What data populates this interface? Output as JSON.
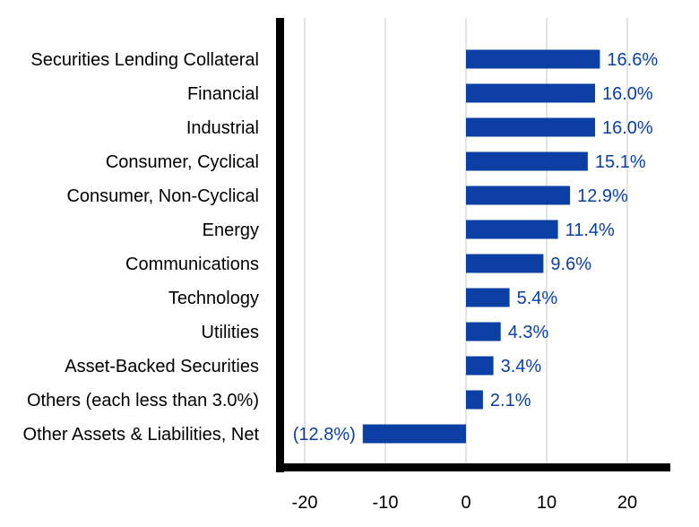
{
  "chart_data": {
    "type": "bar",
    "orientation": "horizontal",
    "title": "",
    "xlabel": "",
    "ylabel": "",
    "xlim": [
      -25,
      25
    ],
    "xticks": [
      -20,
      -10,
      0,
      10,
      20
    ],
    "xtick_labels": [
      "-20",
      "-10",
      "0",
      "10",
      "20"
    ],
    "grid": true,
    "legend": "none",
    "categories": [
      "Securities Lending Collateral",
      "Financial",
      "Industrial",
      "Consumer, Cyclical",
      "Consumer, Non-Cyclical",
      "Energy",
      "Communications",
      "Technology",
      "Utilities",
      "Asset-Backed Securities",
      "Others (each less than 3.0%)",
      "Other Assets & Liabilities, Net"
    ],
    "values": [
      16.6,
      16.0,
      16.0,
      15.1,
      12.9,
      11.4,
      9.6,
      5.4,
      4.3,
      3.4,
      2.1,
      -12.8
    ],
    "data_labels": [
      "16.6%",
      "16.0%",
      "16.0%",
      "15.1%",
      "12.9%",
      "11.4%",
      "9.6%",
      "5.4%",
      "4.3%",
      "3.4%",
      "2.1%",
      "(12.8%)"
    ],
    "colors": {
      "bar": "#0b3fa3",
      "data_label": "#0b3fa3",
      "axis": "#000000",
      "grid": "#d9d9d9"
    }
  }
}
